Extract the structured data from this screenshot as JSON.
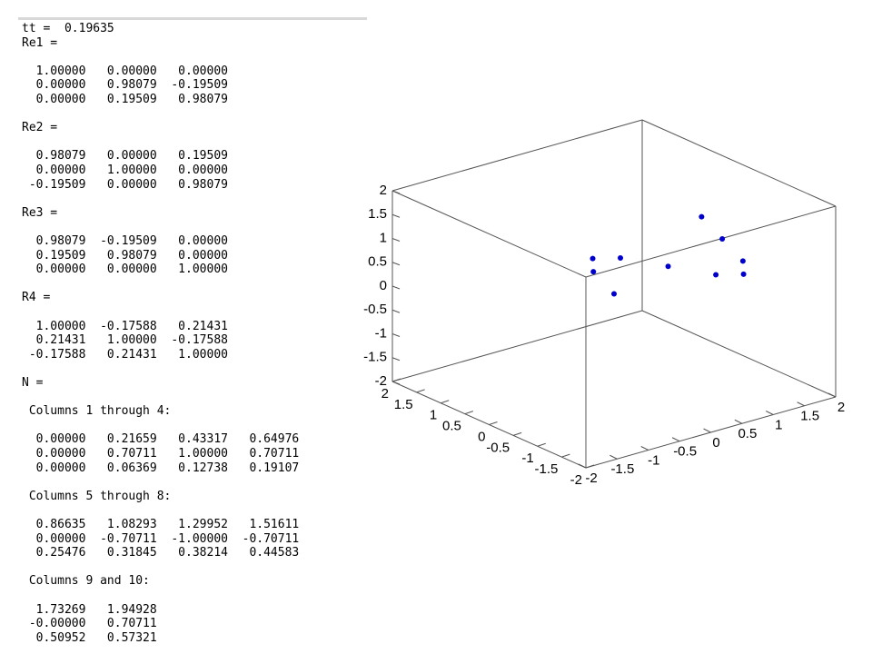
{
  "console": {
    "prelude": "tt =  0.19635",
    "blocks": [
      {
        "name": "Re1 =",
        "rows": [
          "  1.00000   0.00000   0.00000",
          "  0.00000   0.98079  -0.19509",
          "  0.00000   0.19509   0.98079"
        ]
      },
      {
        "name": "Re2 =",
        "rows": [
          "  0.98079   0.00000   0.19509",
          "  0.00000   1.00000   0.00000",
          " -0.19509   0.00000   0.98079"
        ]
      },
      {
        "name": "Re3 =",
        "rows": [
          "  0.98079  -0.19509   0.00000",
          "  0.19509   0.98079   0.00000",
          "  0.00000   0.00000   1.00000"
        ]
      },
      {
        "name": "R4 =",
        "rows": [
          "  1.00000  -0.17588   0.21431",
          "  0.21431   1.00000  -0.17588",
          " -0.17588   0.21431   1.00000"
        ]
      }
    ],
    "n_name": "N =",
    "n_parts": [
      {
        "heading": " Columns 1 through 4:",
        "rows": [
          "  0.00000   0.21659   0.43317   0.64976",
          "  0.00000   0.70711   1.00000   0.70711",
          "  0.00000   0.06369   0.12738   0.19107"
        ]
      },
      {
        "heading": " Columns 5 through 8:",
        "rows": [
          "  0.86635   1.08293   1.29952   1.51611",
          "  0.00000  -0.70711  -1.00000  -0.70711",
          "  0.25476   0.31845   0.38214   0.44583"
        ]
      },
      {
        "heading": " Columns 9 and 10:",
        "rows": [
          "  1.73269   1.94928",
          " -0.00000   0.70711",
          "  0.50952   0.57321"
        ]
      }
    ]
  },
  "chart_data": {
    "type": "scatter3d",
    "color": "#0000cc",
    "x": [
      0.0,
      0.21659,
      0.43317,
      0.64976,
      0.86635,
      1.08293,
      1.29952,
      1.51611,
      1.73269,
      1.94928
    ],
    "y": [
      0.0,
      0.70711,
      1.0,
      0.70711,
      0.0,
      -0.70711,
      -1.0,
      -0.70711,
      -0.0,
      0.70711
    ],
    "z": [
      0.0,
      0.06369,
      0.12738,
      0.19107,
      0.25476,
      0.31845,
      0.38214,
      0.44583,
      0.50952,
      0.57321
    ],
    "xlim": [
      -2,
      2
    ],
    "ylim": [
      -2,
      2
    ],
    "zlim": [
      -2,
      2
    ],
    "xticks": [
      -2,
      -1.5,
      -1,
      -0.5,
      0,
      0.5,
      1,
      1.5,
      2
    ],
    "yticks": [
      -2,
      -1.5,
      -1,
      -0.5,
      0,
      0.5,
      1,
      1.5,
      2
    ],
    "zticks": [
      -2,
      -1.5,
      -1,
      -0.5,
      0,
      0.5,
      1,
      1.5,
      2
    ]
  }
}
